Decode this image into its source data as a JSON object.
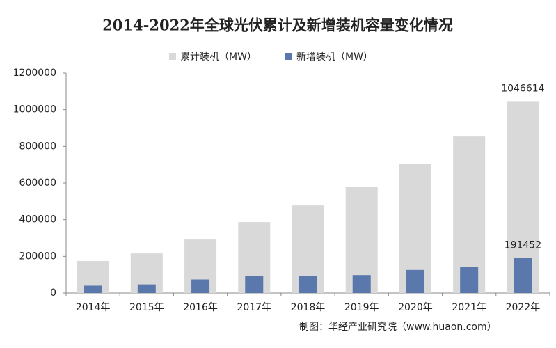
{
  "chart_data": {
    "type": "bar",
    "title": "2014-2022年全球光伏累计及新增装机容量变化情况",
    "categories": [
      "2014年",
      "2015年",
      "2016年",
      "2017年",
      "2018年",
      "2019年",
      "2020年",
      "2021年",
      "2022年"
    ],
    "series": [
      {
        "name": "累计装机（MW）",
        "color": "#d9d9d9",
        "values": [
          175000,
          216000,
          292000,
          387000,
          478000,
          581000,
          706000,
          854000,
          1046614
        ],
        "value_labels": [
          null,
          null,
          null,
          null,
          null,
          null,
          null,
          null,
          "1046614"
        ]
      },
      {
        "name": "新增装机（MW）",
        "color": "#5a78ac",
        "values": [
          40000,
          47000,
          74000,
          95000,
          94000,
          98000,
          126000,
          142000,
          191452
        ],
        "value_labels": [
          null,
          null,
          null,
          null,
          null,
          null,
          null,
          null,
          "191452"
        ]
      }
    ],
    "ylim": [
      0,
      1200000
    ],
    "yticks": [
      0,
      200000,
      400000,
      600000,
      800000,
      1000000,
      1200000
    ],
    "grid": false,
    "legend": "top",
    "source": "制图：华经产业研究院（www.huaon.com）"
  }
}
